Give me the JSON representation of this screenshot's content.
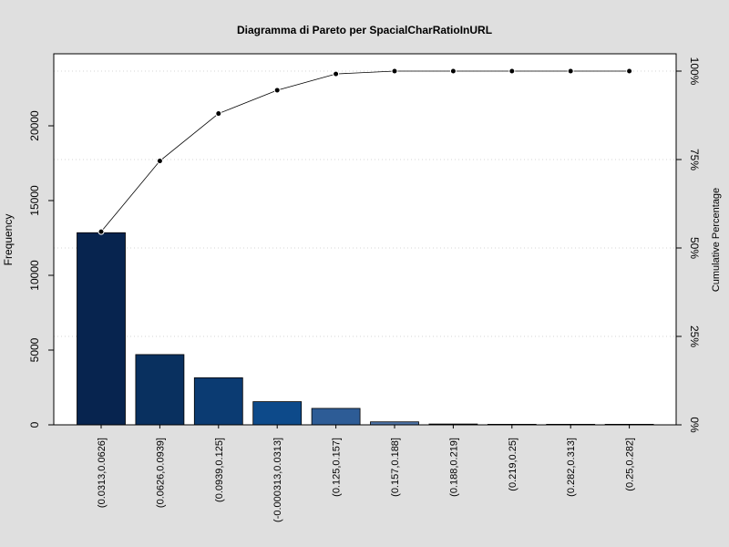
{
  "chart_data": {
    "type": "bar",
    "title": "Diagramma di Pareto per SpacialCharRatioInURL",
    "ylabel": "Frequency",
    "y2label": "Cumulative Percentage",
    "categories": [
      "(0.0313,0.0626]",
      "(0.0626,0.0939]",
      "(0.0939,0.125]",
      "(-0.000313,0.0313]",
      "(0.125,0.157]",
      "(0.157,0.188]",
      "(0.188,0.219]",
      "(0.219,0.25]",
      "(0.282,0.313]",
      "(0.25,0.282]"
    ],
    "values": [
      12850,
      4700,
      3150,
      1550,
      1100,
      200,
      55,
      12,
      6,
      3
    ],
    "cumulative_percentage": [
      54.6,
      74.6,
      88.0,
      94.6,
      99.2,
      100.0,
      100.0,
      100.0,
      100.0,
      100.0
    ],
    "ylim": [
      0,
      24900
    ],
    "y_ticks": [
      "0",
      "5000",
      "10000",
      "15000",
      "20000"
    ],
    "y_tick_values": [
      0,
      5000,
      10000,
      15000,
      20000
    ],
    "y2_ticks": [
      "0%",
      "25%",
      "50%",
      "75%",
      "100%"
    ],
    "y2_tick_values": [
      0,
      25,
      50,
      75,
      100
    ],
    "bar_colors": [
      "#07244f",
      "#09305f",
      "#0b3b72",
      "#0d4a8a",
      "#2d5c96",
      "#4d74a8",
      "#6b8bbb",
      "#8aa3c9",
      "#a9bbd7",
      "#c8d3e4"
    ],
    "grid": "horizontal dotted at percentage ticks",
    "legend": "none"
  }
}
